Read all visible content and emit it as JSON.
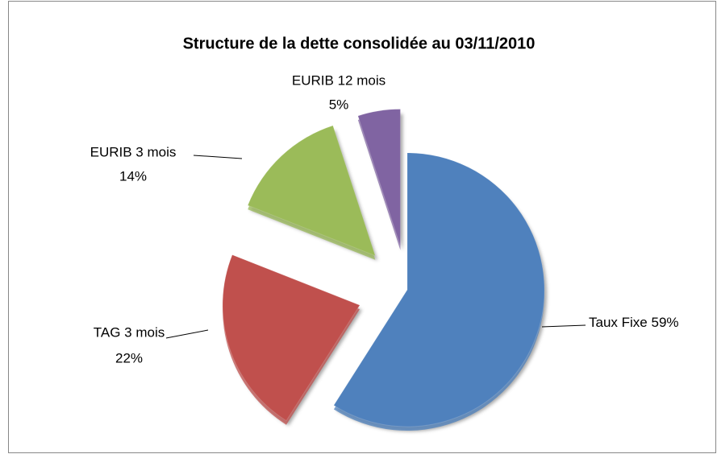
{
  "chart_data": {
    "type": "pie",
    "title": "Structure de la dette consolidée au 03/11/2010",
    "categories": [
      "Taux Fixe",
      "TAG 3 mois",
      "EURIB 3 mois",
      "EURIB 12 mois"
    ],
    "values": [
      59,
      22,
      14,
      5
    ],
    "value_labels": [
      "59%",
      "22%",
      "14%",
      "5%"
    ],
    "colors": [
      "#4f81bd",
      "#c0504d",
      "#9bbb59",
      "#8064a2"
    ]
  }
}
